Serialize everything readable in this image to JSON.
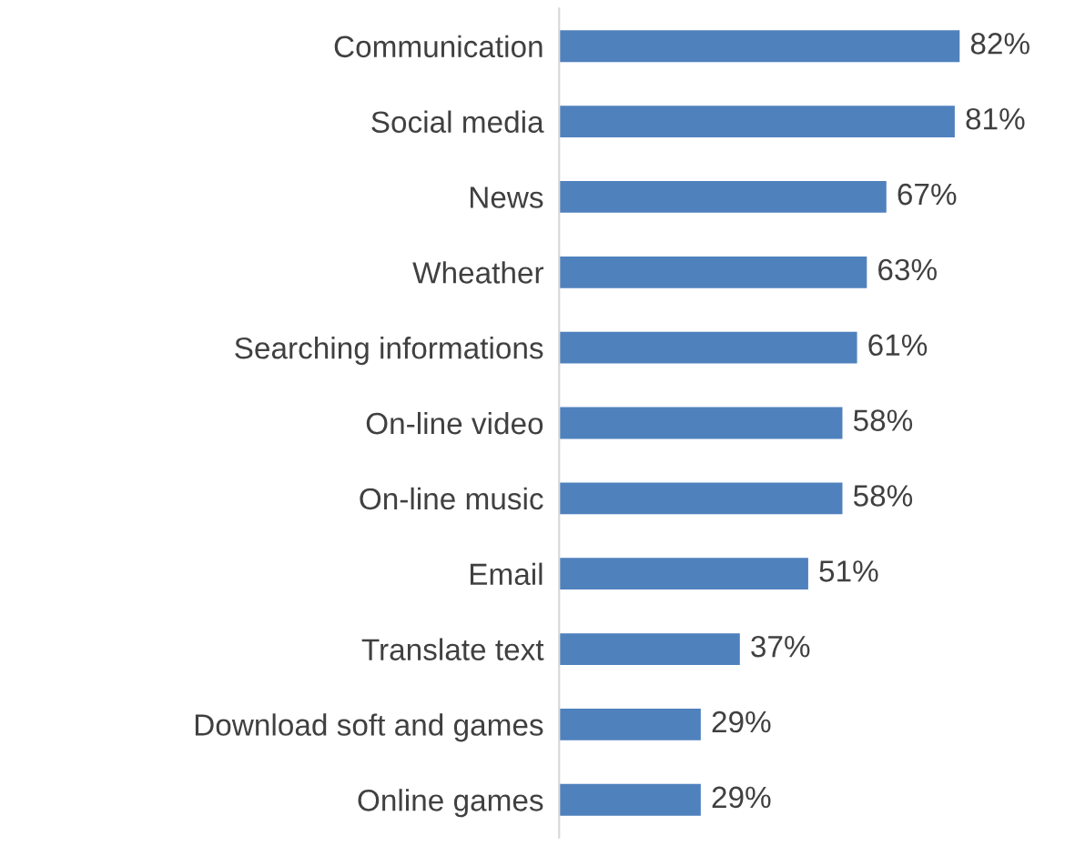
{
  "chart_data": {
    "type": "bar",
    "orientation": "horizontal",
    "categories": [
      "Communication",
      "Social media",
      "News",
      "Wheather",
      "Searching informations",
      "On-line video",
      "On-line music",
      "Email",
      "Translate text",
      "Download soft and games",
      "Online games"
    ],
    "values": [
      82,
      81,
      67,
      63,
      61,
      58,
      58,
      51,
      37,
      29,
      29
    ],
    "value_labels": [
      "82%",
      "81%",
      "67%",
      "63%",
      "61%",
      "58%",
      "58%",
      "51%",
      "37%",
      "29%",
      "29%"
    ],
    "color": "#4f81bd",
    "grid": false,
    "legend": false
  }
}
